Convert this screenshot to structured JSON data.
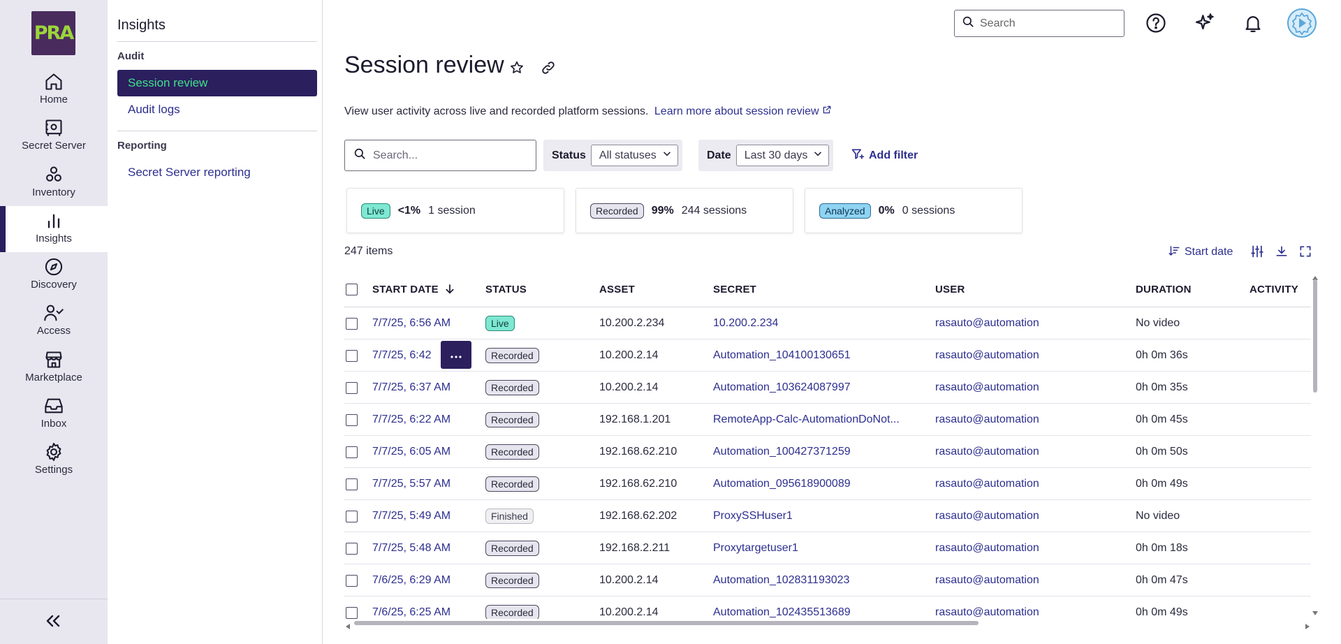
{
  "rail": {
    "logo_text": "PRA",
    "items": [
      {
        "label": "Home",
        "icon": "home-icon"
      },
      {
        "label": "Secret Server",
        "icon": "vault-icon"
      },
      {
        "label": "Inventory",
        "icon": "inventory-icon"
      },
      {
        "label": "Insights",
        "icon": "bar-chart-icon"
      },
      {
        "label": "Discovery",
        "icon": "compass-icon"
      },
      {
        "label": "Access",
        "icon": "user-check-icon"
      },
      {
        "label": "Marketplace",
        "icon": "store-icon"
      },
      {
        "label": "Inbox",
        "icon": "inbox-icon"
      },
      {
        "label": "Settings",
        "icon": "gear-icon"
      }
    ],
    "active_index": 3
  },
  "subnav": {
    "title": "Insights",
    "group_audit": "Audit",
    "session_review": "Session review",
    "audit_logs": "Audit logs",
    "group_reporting": "Reporting",
    "secret_server_reporting": "Secret Server reporting"
  },
  "topbar": {
    "search_placeholder": "Search"
  },
  "main": {
    "title": "Session review",
    "description": "View user activity across live and recorded platform sessions.",
    "learn_more": "Learn more about session review",
    "search_placeholder": "Search...",
    "status_label": "Status",
    "status_value": "All statuses",
    "date_label": "Date",
    "date_value": "Last 30 days",
    "add_filter": "Add filter"
  },
  "stats": [
    {
      "badge": "Live",
      "pct": "<1%",
      "count": "1 session"
    },
    {
      "badge": "Recorded",
      "pct": "99%",
      "count": "244 sessions"
    },
    {
      "badge": "Analyzed",
      "pct": "0%",
      "count": "0 sessions"
    }
  ],
  "items_count": "247 items",
  "sort_label": "Start date",
  "columns": {
    "start_date": "START DATE",
    "status": "STATUS",
    "asset": "ASSET",
    "secret": "SECRET",
    "user": "USER",
    "duration": "DURATION",
    "activity": "ACTIVITY"
  },
  "rows": [
    {
      "start": "7/7/25, 6:56 AM",
      "status": "Live",
      "asset": "10.200.2.234",
      "secret": "10.200.2.234",
      "user": "rasauto@automation",
      "duration": "No video"
    },
    {
      "start": "7/7/25, 6:42",
      "status": "Recorded",
      "asset": "10.200.2.14",
      "secret": "Automation_104100130651",
      "user": "rasauto@automation",
      "duration": "0h 0m 36s"
    },
    {
      "start": "7/7/25, 6:37 AM",
      "status": "Recorded",
      "asset": "10.200.2.14",
      "secret": "Automation_103624087997",
      "user": "rasauto@automation",
      "duration": "0h 0m 35s"
    },
    {
      "start": "7/7/25, 6:22 AM",
      "status": "Recorded",
      "asset": "192.168.1.201",
      "secret": "RemoteApp-Calc-AutomationDoNot...",
      "user": "rasauto@automation",
      "duration": "0h 0m 45s"
    },
    {
      "start": "7/7/25, 6:05 AM",
      "status": "Recorded",
      "asset": "192.168.62.210",
      "secret": "Automation_100427371259",
      "user": "rasauto@automation",
      "duration": "0h 0m 50s"
    },
    {
      "start": "7/7/25, 5:57 AM",
      "status": "Recorded",
      "asset": "192.168.62.210",
      "secret": "Automation_095618900089",
      "user": "rasauto@automation",
      "duration": "0h 0m 49s"
    },
    {
      "start": "7/7/25, 5:49 AM",
      "status": "Finished",
      "asset": "192.168.62.202",
      "secret": "ProxySSHuser1",
      "user": "rasauto@automation",
      "duration": "No video"
    },
    {
      "start": "7/7/25, 5:48 AM",
      "status": "Recorded",
      "asset": "192.168.2.211",
      "secret": "Proxytargetuser1",
      "user": "rasauto@automation",
      "duration": "0h 0m 18s"
    },
    {
      "start": "7/6/25, 6:29 AM",
      "status": "Recorded",
      "asset": "10.200.2.14",
      "secret": "Automation_102831193023",
      "user": "rasauto@automation",
      "duration": "0h 0m 47s"
    },
    {
      "start": "7/6/25, 6:25 AM",
      "status": "Recorded",
      "asset": "10.200.2.14",
      "secret": "Automation_102435513689",
      "user": "rasauto@automation",
      "duration": "0h 0m 49s"
    }
  ],
  "colors": {
    "primary": "#2b1f5e",
    "link": "#2d2f8f",
    "active_text": "#40e08b",
    "live": "#7ee8d2",
    "analyzed": "#8fd3f2"
  }
}
